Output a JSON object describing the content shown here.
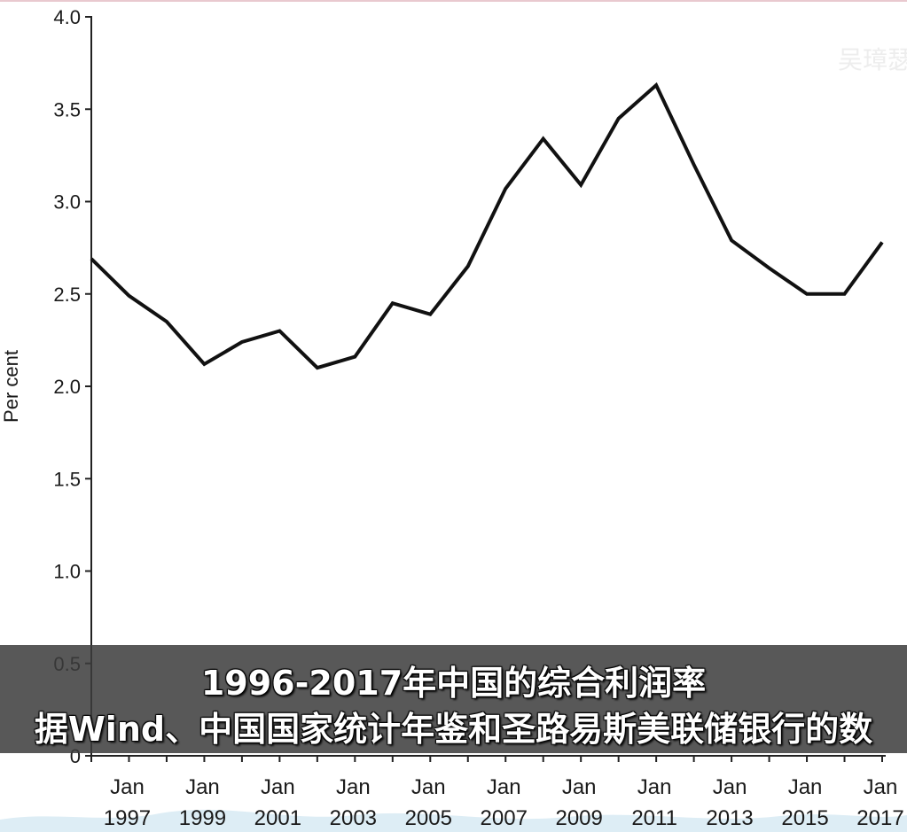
{
  "caption": {
    "line1": "1996-2017年中国的综合利润率",
    "line2": "据Wind、中国国家统计年鉴和圣路易斯美联储银行的数"
  },
  "watermark": {
    "text": "吴璋瑟"
  },
  "chart_data": {
    "type": "line",
    "title": "",
    "xlabel": "",
    "ylabel": "Per cent",
    "ylim": [
      0,
      4.0
    ],
    "yticks": [
      "0",
      "0.5",
      "1.0",
      "1.5",
      "2.0",
      "2.5",
      "3.0",
      "3.5",
      "4.0"
    ],
    "xticks": [
      {
        "month": "Jan",
        "year": "1997"
      },
      {
        "month": "Jan",
        "year": "1999"
      },
      {
        "month": "Jan",
        "year": "2001"
      },
      {
        "month": "Jan",
        "year": "2003"
      },
      {
        "month": "Jan",
        "year": "2005"
      },
      {
        "month": "Jan",
        "year": "2007"
      },
      {
        "month": "Jan",
        "year": "2009"
      },
      {
        "month": "Jan",
        "year": "2011"
      },
      {
        "month": "Jan",
        "year": "2013"
      },
      {
        "month": "Jan",
        "year": "2015"
      },
      {
        "month": "Jan",
        "year": "2017"
      }
    ],
    "grid": false,
    "series": [
      {
        "color": "#111111",
        "x": [
          1996,
          1997,
          1998,
          1999,
          2000,
          2001,
          2002,
          2003,
          2004,
          2005,
          2006,
          2007,
          2008,
          2009,
          2010,
          2011,
          2012,
          2013,
          2014,
          2015,
          2016,
          2017
        ],
        "y": [
          2.69,
          2.49,
          2.35,
          2.12,
          2.24,
          2.3,
          2.1,
          2.16,
          2.45,
          2.39,
          2.65,
          3.07,
          3.34,
          3.09,
          3.45,
          3.63,
          3.2,
          2.79,
          2.64,
          2.5,
          2.5,
          2.78
        ]
      }
    ]
  }
}
